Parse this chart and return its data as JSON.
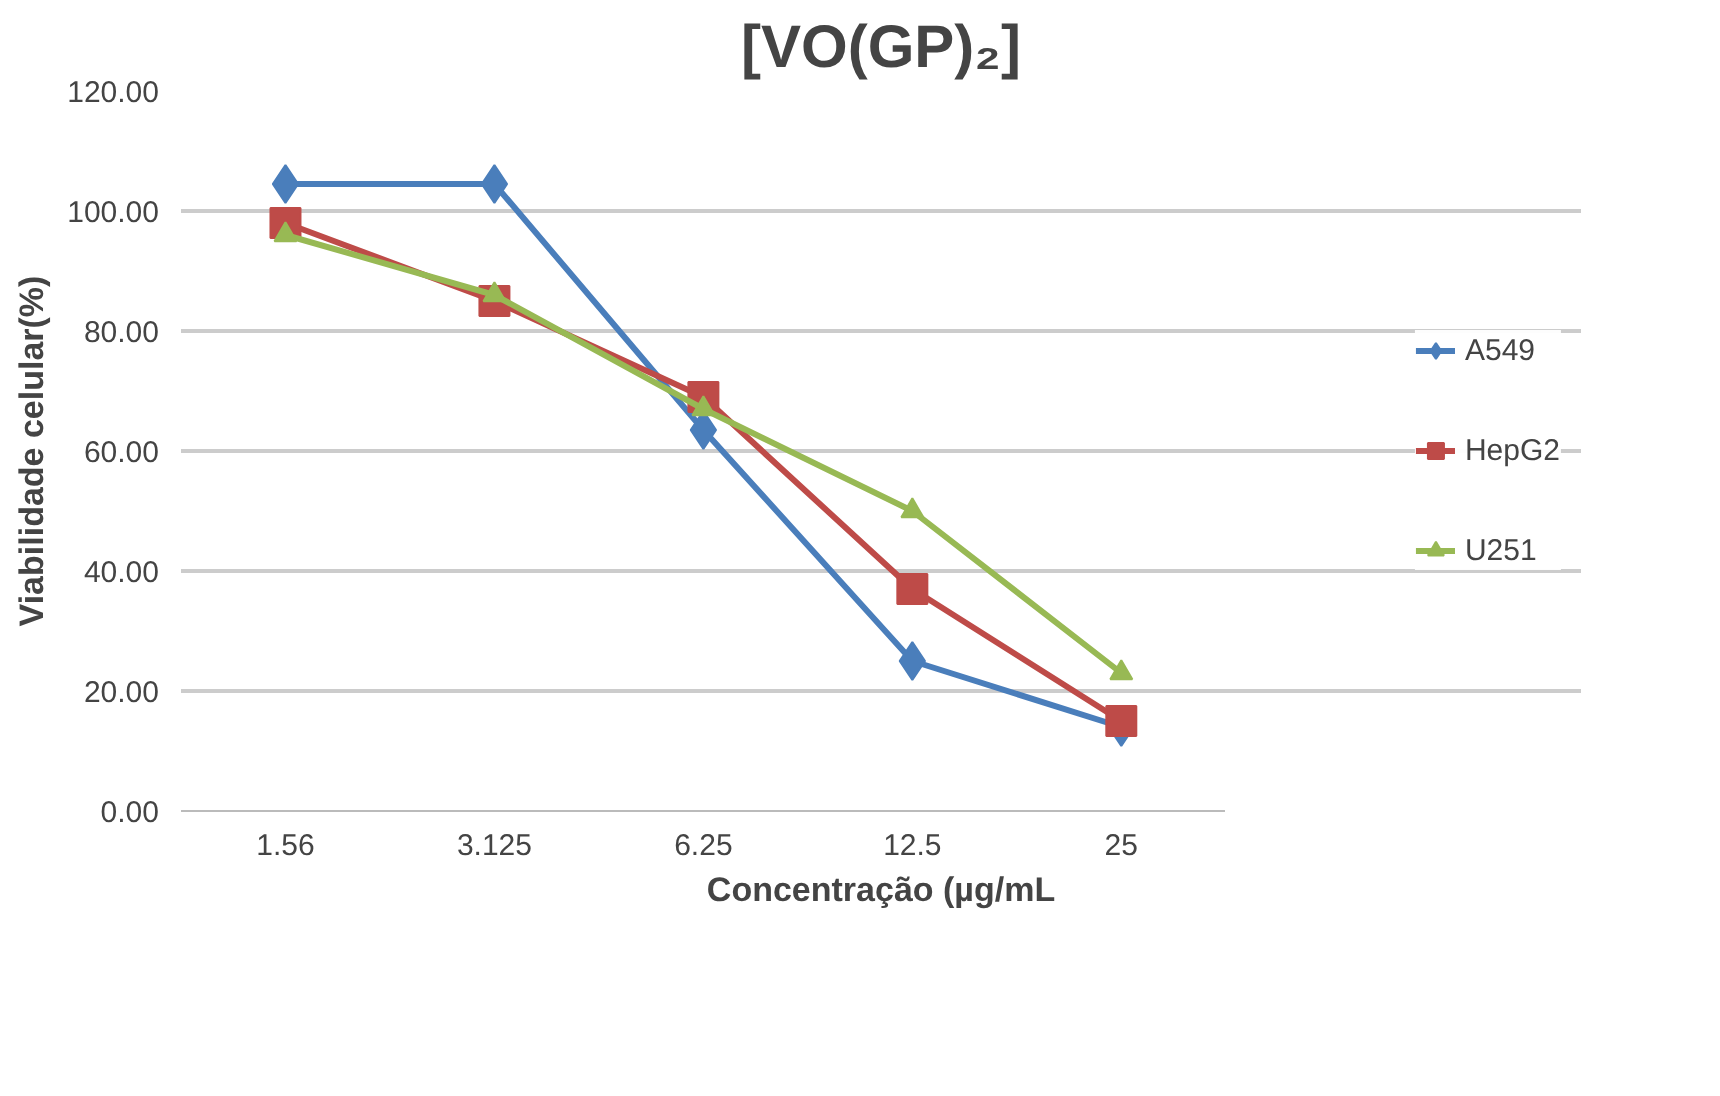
{
  "chart_data": {
    "type": "line",
    "title": "[VO(GP)₂]",
    "xlabel": "Concentração (µg/mL",
    "ylabel": "Viabilidade celular(%)",
    "categories": [
      "1.56",
      "3.125",
      "6.25",
      "12.5",
      "25"
    ],
    "series": [
      {
        "name": "A549",
        "color": "#4a7ebb",
        "marker": "diamond",
        "values": [
          104.5,
          104.5,
          63.5,
          25,
          14
        ]
      },
      {
        "name": "HepG2",
        "color": "#be4b48",
        "marker": "square",
        "values": [
          98,
          85,
          69,
          37,
          15
        ]
      },
      {
        "name": "U251",
        "color": "#98b954",
        "marker": "triangle",
        "values": [
          96,
          86,
          67,
          50,
          23
        ]
      }
    ],
    "ylim": [
      0,
      120
    ],
    "yticks": [
      {
        "value": 0,
        "label": "0.00"
      },
      {
        "value": 20,
        "label": "20.00"
      },
      {
        "value": 40,
        "label": "40.00"
      },
      {
        "value": 60,
        "label": "60.00"
      },
      {
        "value": 80,
        "label": "80.00"
      },
      {
        "value": 100,
        "label": "100.00"
      },
      {
        "value": 120,
        "label": "120.00"
      }
    ],
    "grid": "y",
    "legend": "right"
  }
}
